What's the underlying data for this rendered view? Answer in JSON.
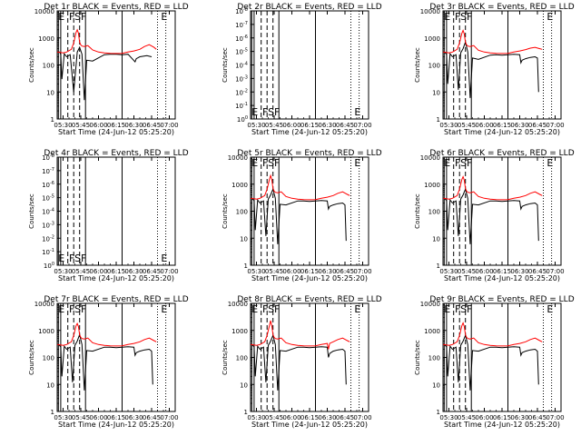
{
  "figure": {
    "x_tick_labels": [
      "05:30",
      "05:45",
      "06:00",
      "06:15",
      "06:30",
      "06:45",
      "07:00"
    ],
    "xlabel": "Start Time (24-Jun-12 05:25:20)",
    "ylabel": "Counts/sec",
    "event_color": "#000000",
    "lld_color": "#ff0000"
  },
  "chart_data": [
    {
      "type": "line",
      "title": "Det  1r  BLACK = Events, RED = LLD",
      "xlabel": "Start Time (24-Jun-12 05:25:20)",
      "ylabel": "Counts/sec",
      "x_unit": "minutes after 05:25:20",
      "yscale": "log",
      "ylim": [
        1,
        10000
      ],
      "y_tick_labels": [
        "1",
        "10",
        "100",
        "1000",
        "10000"
      ],
      "has_data": true,
      "markers": [
        "E",
        "FS",
        "F",
        "E"
      ],
      "series": [
        {
          "color": "#000000",
          "x": [
            0,
            1,
            2,
            3,
            4,
            6,
            8,
            11,
            14,
            17,
            19,
            21,
            23,
            25,
            30,
            40,
            45,
            50,
            55,
            60,
            66,
            67,
            68,
            70,
            73,
            76,
            80
          ],
          "y": [
            300,
            300,
            300,
            250,
            30,
            260,
            200,
            240,
            10,
            300,
            450,
            250,
            5,
            150,
            140,
            240,
            250,
            250,
            240,
            250,
            130,
            170,
            180,
            200,
            210,
            220,
            200
          ]
        },
        {
          "color": "#ff0000",
          "x": [
            0,
            3,
            5,
            8,
            12,
            14,
            16,
            17,
            18,
            19,
            20,
            21,
            23,
            26,
            30,
            35,
            40,
            45,
            50,
            55,
            60,
            65,
            70,
            74,
            78,
            82,
            84
          ],
          "y": [
            300,
            290,
            280,
            300,
            380,
            650,
            1600,
            2000,
            1500,
            700,
            550,
            500,
            480,
            520,
            360,
            300,
            280,
            270,
            265,
            270,
            300,
            330,
            380,
            480,
            560,
            450,
            380
          ]
        }
      ]
    },
    {
      "type": "line",
      "title": "Det  2r  BLACK = Events, RED = LLD",
      "xlabel": "Start Time (24-Jun-12 05:25:20)",
      "ylabel": "Counts/sec",
      "has_data": false,
      "y_tick_labels": [
        "10^0",
        "10^-1",
        "10^-2",
        "10^-3",
        "10^-4",
        "10^-5",
        "10^-6",
        "10^-7",
        "10^-8"
      ],
      "markers": [
        "E",
        "FS",
        "F",
        "E"
      ]
    },
    {
      "type": "line",
      "title": "Det  3r  BLACK = Events, RED = LLD",
      "xlabel": "Start Time (24-Jun-12 05:25:20)",
      "ylabel": "Counts/sec",
      "x_unit": "minutes after 05:25:20",
      "yscale": "log",
      "ylim": [
        1,
        10000
      ],
      "y_tick_labels": [
        "1",
        "10",
        "100",
        "1000",
        "10000"
      ],
      "has_data": true,
      "markers": [
        "E",
        "FS",
        "F",
        "E"
      ],
      "series": [
        {
          "color": "#000000",
          "x": [
            0,
            1,
            3,
            4,
            6,
            8,
            11,
            13,
            15,
            17,
            19,
            21,
            23,
            25,
            30,
            40,
            45,
            50,
            55,
            60,
            65,
            66,
            67,
            70,
            74,
            78,
            80,
            81
          ],
          "y": [
            300,
            300,
            250,
            20,
            260,
            200,
            240,
            12,
            280,
            400,
            700,
            300,
            6,
            180,
            160,
            230,
            240,
            230,
            240,
            250,
            240,
            120,
            150,
            170,
            190,
            200,
            180,
            10
          ]
        },
        {
          "color": "#ff0000",
          "x": [
            0,
            3,
            5,
            8,
            12,
            14,
            16,
            17,
            18,
            19,
            20,
            21,
            23,
            26,
            30,
            35,
            40,
            45,
            50,
            55,
            60,
            65,
            70,
            74,
            78,
            82,
            84
          ],
          "y": [
            300,
            290,
            280,
            300,
            380,
            650,
            1500,
            1900,
            1400,
            700,
            550,
            500,
            480,
            520,
            350,
            300,
            280,
            270,
            265,
            270,
            300,
            330,
            370,
            420,
            450,
            400,
            380
          ]
        }
      ]
    },
    {
      "type": "line",
      "title": "Det  4r  BLACK = Events, RED = LLD",
      "xlabel": "Start Time (24-Jun-12 05:25:20)",
      "ylabel": "Counts/sec",
      "has_data": false,
      "y_tick_labels": [
        "10^0",
        "10^-1",
        "10^-2",
        "10^-3",
        "10^-4",
        "10^-5",
        "10^-6",
        "10^-7",
        "10^-8"
      ],
      "markers": [
        "E",
        "FS",
        "F",
        "E"
      ]
    },
    {
      "type": "line",
      "title": "Det  5r  BLACK = Events, RED = LLD",
      "xlabel": "Start Time (24-Jun-12 05:25:20)",
      "ylabel": "Counts/sec",
      "x_unit": "minutes after 05:25:20",
      "yscale": "log",
      "ylim": [
        1,
        10000
      ],
      "y_tick_labels": [
        "1",
        "10",
        "100",
        "1000",
        "10000"
      ],
      "has_data": true,
      "markers": [
        "E",
        "FS",
        "F",
        "E"
      ],
      "series": [
        {
          "color": "#000000",
          "x": [
            0,
            1,
            3,
            4,
            6,
            8,
            11,
            13,
            15,
            17,
            19,
            21,
            23,
            25,
            30,
            40,
            45,
            50,
            55,
            60,
            65,
            66,
            67,
            70,
            74,
            78,
            80,
            81
          ],
          "y": [
            300,
            300,
            250,
            20,
            260,
            200,
            240,
            12,
            280,
            400,
            650,
            300,
            6,
            180,
            170,
            240,
            240,
            230,
            240,
            250,
            240,
            120,
            150,
            170,
            190,
            200,
            170,
            8
          ]
        },
        {
          "color": "#ff0000",
          "x": [
            0,
            3,
            5,
            8,
            12,
            14,
            16,
            17,
            18,
            19,
            20,
            21,
            23,
            26,
            30,
            35,
            40,
            45,
            50,
            55,
            60,
            65,
            70,
            74,
            78,
            82,
            84
          ],
          "y": [
            300,
            290,
            280,
            300,
            380,
            650,
            1500,
            2100,
            1500,
            700,
            550,
            500,
            480,
            520,
            350,
            300,
            280,
            270,
            265,
            270,
            300,
            330,
            380,
            460,
            520,
            420,
            380
          ]
        }
      ]
    },
    {
      "type": "line",
      "title": "Det  6r  BLACK = Events, RED = LLD",
      "xlabel": "Start Time (24-Jun-12 05:25:20)",
      "ylabel": "Counts/sec",
      "x_unit": "minutes after 05:25:20",
      "yscale": "log",
      "ylim": [
        1,
        10000
      ],
      "y_tick_labels": [
        "1",
        "10",
        "100",
        "1000",
        "10000"
      ],
      "has_data": true,
      "markers": [
        "E",
        "FS",
        "F",
        "E"
      ],
      "series": [
        {
          "color": "#000000",
          "x": [
            0,
            1,
            3,
            4,
            6,
            8,
            11,
            13,
            15,
            17,
            19,
            21,
            23,
            25,
            30,
            40,
            45,
            50,
            55,
            60,
            65,
            66,
            67,
            70,
            74,
            78,
            80,
            81
          ],
          "y": [
            300,
            300,
            250,
            20,
            260,
            200,
            240,
            12,
            280,
            400,
            650,
            300,
            6,
            180,
            170,
            240,
            240,
            230,
            240,
            250,
            240,
            120,
            150,
            170,
            190,
            200,
            170,
            8
          ]
        },
        {
          "color": "#ff0000",
          "x": [
            0,
            3,
            5,
            8,
            12,
            14,
            16,
            17,
            18,
            19,
            20,
            21,
            23,
            26,
            30,
            35,
            40,
            45,
            50,
            55,
            60,
            65,
            70,
            74,
            78,
            82,
            84
          ],
          "y": [
            300,
            290,
            280,
            300,
            380,
            650,
            1500,
            1900,
            1400,
            700,
            550,
            500,
            480,
            520,
            350,
            300,
            280,
            270,
            265,
            270,
            300,
            330,
            380,
            460,
            520,
            420,
            380
          ]
        }
      ]
    },
    {
      "type": "line",
      "title": "Det  7r  BLACK = Events, RED = LLD",
      "xlabel": "Start Time (24-Jun-12 05:25:20)",
      "ylabel": "Counts/sec",
      "x_unit": "minutes after 05:25:20",
      "yscale": "log",
      "ylim": [
        1,
        10000
      ],
      "y_tick_labels": [
        "1",
        "10",
        "100",
        "1000",
        "10000"
      ],
      "has_data": true,
      "markers": [
        "E",
        "FS",
        "F",
        "E"
      ],
      "series": [
        {
          "color": "#000000",
          "x": [
            0,
            1,
            3,
            4,
            6,
            8,
            11,
            13,
            15,
            17,
            19,
            21,
            23,
            25,
            30,
            40,
            45,
            50,
            55,
            60,
            65,
            66,
            67,
            70,
            74,
            78,
            80,
            81
          ],
          "y": [
            300,
            300,
            250,
            20,
            260,
            200,
            240,
            12,
            280,
            400,
            700,
            300,
            6,
            180,
            170,
            240,
            240,
            230,
            240,
            250,
            240,
            120,
            150,
            170,
            190,
            200,
            170,
            10
          ]
        },
        {
          "color": "#ff0000",
          "x": [
            0,
            3,
            5,
            8,
            12,
            14,
            16,
            17,
            18,
            19,
            20,
            21,
            23,
            26,
            30,
            35,
            40,
            45,
            50,
            55,
            60,
            65,
            70,
            74,
            78,
            82,
            84
          ],
          "y": [
            300,
            290,
            280,
            300,
            380,
            650,
            1500,
            1800,
            1400,
            700,
            550,
            500,
            480,
            520,
            350,
            300,
            280,
            270,
            265,
            270,
            300,
            330,
            380,
            460,
            520,
            420,
            380
          ]
        }
      ]
    },
    {
      "type": "line",
      "title": "Det  8r  BLACK = Events, RED = LLD",
      "xlabel": "Start Time (24-Jun-12 05:25:20)",
      "ylabel": "Counts/sec",
      "x_unit": "minutes after 05:25:20",
      "yscale": "log",
      "ylim": [
        1,
        10000
      ],
      "y_tick_labels": [
        "1",
        "10",
        "100",
        "1000",
        "10000"
      ],
      "has_data": true,
      "markers": [
        "E",
        "FS",
        "F",
        "E"
      ],
      "series": [
        {
          "color": "#000000",
          "x": [
            0,
            1,
            3,
            4,
            6,
            8,
            11,
            13,
            15,
            17,
            19,
            21,
            23,
            25,
            30,
            40,
            45,
            50,
            55,
            60,
            65,
            66,
            67,
            70,
            74,
            78,
            80,
            81
          ],
          "y": [
            300,
            300,
            250,
            20,
            260,
            200,
            240,
            12,
            280,
            400,
            650,
            300,
            6,
            180,
            170,
            240,
            240,
            230,
            240,
            250,
            240,
            100,
            140,
            170,
            190,
            200,
            170,
            10
          ]
        },
        {
          "color": "#ff0000",
          "x": [
            0,
            3,
            5,
            8,
            12,
            14,
            16,
            17,
            18,
            19,
            20,
            21,
            23,
            26,
            30,
            35,
            40,
            45,
            50,
            55,
            60,
            65,
            66,
            67,
            70,
            74,
            78,
            82,
            84
          ],
          "y": [
            300,
            290,
            280,
            300,
            380,
            650,
            1500,
            2300,
            1500,
            700,
            550,
            500,
            480,
            520,
            350,
            300,
            280,
            270,
            265,
            270,
            300,
            330,
            200,
            330,
            380,
            460,
            520,
            420,
            380
          ]
        }
      ]
    },
    {
      "type": "line",
      "title": "Det  9r  BLACK = Events, RED = LLD",
      "xlabel": "Start Time (24-Jun-12 05:25:20)",
      "ylabel": "Counts/sec",
      "x_unit": "minutes after 05:25:20",
      "yscale": "log",
      "ylim": [
        1,
        10000
      ],
      "y_tick_labels": [
        "1",
        "10",
        "100",
        "1000",
        "10000"
      ],
      "has_data": true,
      "markers": [
        "E",
        "FS",
        "F",
        "E"
      ],
      "series": [
        {
          "color": "#000000",
          "x": [
            0,
            1,
            3,
            4,
            6,
            8,
            11,
            13,
            15,
            17,
            19,
            21,
            23,
            25,
            30,
            40,
            45,
            50,
            55,
            60,
            65,
            66,
            67,
            70,
            74,
            78,
            80,
            81
          ],
          "y": [
            300,
            300,
            250,
            20,
            260,
            200,
            240,
            12,
            280,
            400,
            650,
            300,
            6,
            180,
            170,
            240,
            240,
            230,
            240,
            250,
            240,
            120,
            150,
            170,
            190,
            200,
            170,
            10
          ]
        },
        {
          "color": "#ff0000",
          "x": [
            0,
            3,
            5,
            8,
            12,
            14,
            16,
            17,
            18,
            19,
            20,
            21,
            23,
            26,
            30,
            35,
            40,
            45,
            50,
            55,
            60,
            65,
            70,
            74,
            78,
            82,
            84
          ],
          "y": [
            300,
            290,
            280,
            300,
            380,
            650,
            1500,
            1900,
            1400,
            700,
            550,
            500,
            480,
            520,
            350,
            300,
            280,
            270,
            265,
            270,
            300,
            330,
            380,
            460,
            520,
            420,
            380
          ]
        }
      ]
    }
  ]
}
